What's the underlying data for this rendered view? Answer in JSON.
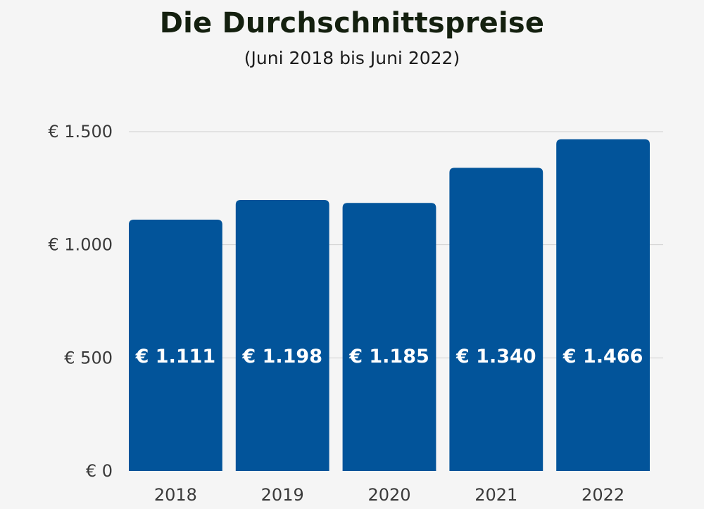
{
  "header": {
    "title": "Die Durchschnittspreise",
    "subtitle": "(Juni 2018 bis Juni 2022)"
  },
  "colors": {
    "bar": "#02549a",
    "grid": "#cfcfcf",
    "background": "#f5f5f5"
  },
  "chart_data": {
    "type": "bar",
    "title": "Die Durchschnittspreise",
    "subtitle": "(Juni 2018 bis Juni 2022)",
    "categories": [
      "2018",
      "2019",
      "2020",
      "2021",
      "2022"
    ],
    "values": [
      1111,
      1198,
      1185,
      1340,
      1466
    ],
    "value_labels": [
      "€ 1.111",
      "€ 1.198",
      "€ 1.185",
      "€ 1.340",
      "€ 1.466"
    ],
    "xlabel": "",
    "ylabel": "",
    "ylim": [
      0,
      1500
    ],
    "yticks": [
      0,
      500,
      1000,
      1500
    ],
    "ytick_labels": [
      "€ 0",
      "€ 500",
      "€ 1.000",
      "€ 1.500"
    ],
    "grid": true,
    "legend": "none"
  }
}
